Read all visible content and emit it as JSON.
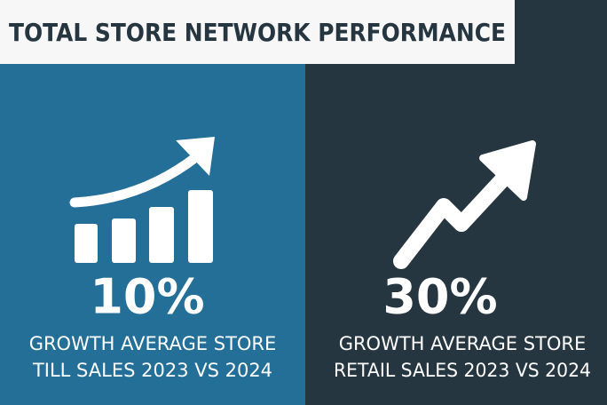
{
  "header": {
    "title": "TOTAL STORE NETWORK PERFORMANCE"
  },
  "panels": [
    {
      "value": "10%",
      "caption": [
        "GROWTH AVERAGE STORE",
        "TILL SALES 2023 VS 2024"
      ]
    },
    {
      "value": "30%",
      "caption": [
        "GROWTH AVERAGE STORE",
        "RETAIL SALES 2023 VS 2024"
      ]
    }
  ]
}
